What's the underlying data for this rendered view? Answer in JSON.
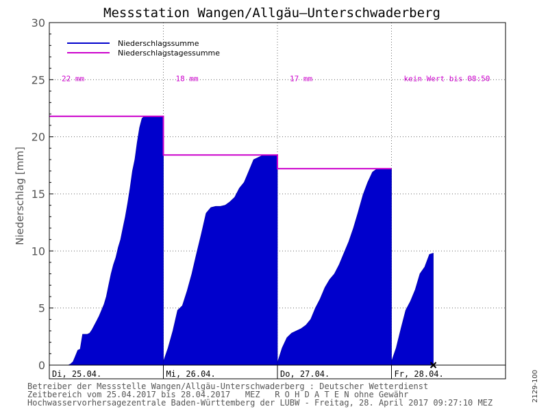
{
  "chart_data": {
    "type": "area",
    "title": "Messstation Wangen/Allgäu–Unterschwaderberg",
    "ylabel": "Niederschlag [mm]",
    "xlabel": "",
    "ylim": [
      0,
      30
    ],
    "y_ticks": [
      0,
      5,
      10,
      15,
      20,
      25,
      30
    ],
    "grid": true,
    "legend_placement": "top-left",
    "legend": [
      {
        "label": "Niederschlagssumme",
        "color": "#0000cc"
      },
      {
        "label": "Niederschlagstagessumme",
        "color": "#cc00cc"
      }
    ],
    "days": [
      {
        "label": "Di, 25.04.",
        "daily_label": "22 mm",
        "daily_total": 21.8
      },
      {
        "label": "Mi, 26.04.",
        "daily_label": "18 mm",
        "daily_total": 18.4
      },
      {
        "label": "Do, 27.04.",
        "daily_label": "17 mm",
        "daily_total": 17.2
      },
      {
        "label": "Fr, 28.04.",
        "daily_label": "kein Wert bis 08:50",
        "daily_total": null
      }
    ],
    "series": [
      {
        "name": "Niederschlagssumme",
        "x_hours": [
          0,
          1,
          2,
          3,
          4,
          4.5,
          5,
          5.5,
          6,
          6.5,
          7,
          7.5,
          8,
          8.5,
          9,
          9.5,
          10,
          10.5,
          11,
          11.5,
          12,
          12.5,
          13,
          13.5,
          14,
          14.5,
          15,
          15.5,
          16,
          16.5,
          17,
          17.5,
          18,
          18.5,
          19,
          19.5,
          20,
          20.5,
          21,
          21.5,
          22,
          22.5,
          23,
          23.5,
          24,
          24,
          25,
          26,
          27,
          28,
          29,
          30,
          31,
          32,
          33,
          34,
          35,
          36,
          37,
          38,
          39,
          40,
          41,
          42,
          43,
          44,
          45,
          46,
          47,
          48,
          48,
          49,
          50,
          51,
          52,
          53,
          54,
          55,
          56,
          57,
          58,
          59,
          60,
          61,
          62,
          63,
          64,
          65,
          66,
          67,
          68,
          69,
          70,
          71,
          72,
          72,
          73,
          74,
          75,
          76,
          77,
          78,
          79,
          80,
          80.8
        ],
        "values": [
          0,
          0,
          0,
          0,
          0,
          0.1,
          0.3,
          0.8,
          1.3,
          1.4,
          2.7,
          2.7,
          2.7,
          2.8,
          3.1,
          3.5,
          3.9,
          4.3,
          4.8,
          5.3,
          6.0,
          7.0,
          8.0,
          8.8,
          9.4,
          10.3,
          11.0,
          12.0,
          13.0,
          14.2,
          15.5,
          17.0,
          18.0,
          19.5,
          20.8,
          21.6,
          21.8,
          21.8,
          21.8,
          21.8,
          21.8,
          21.8,
          21.8,
          21.8,
          21.8,
          0.3,
          1.5,
          3.0,
          4.8,
          5.2,
          6.5,
          8.0,
          9.8,
          11.5,
          13.3,
          13.8,
          13.9,
          13.9,
          14.0,
          14.3,
          14.7,
          15.5,
          16.0,
          17.0,
          18.0,
          18.2,
          18.4,
          18.4,
          18.4,
          18.4,
          0.2,
          1.5,
          2.4,
          2.8,
          3.0,
          3.2,
          3.5,
          4.0,
          5.0,
          5.8,
          6.8,
          7.5,
          8.0,
          8.8,
          9.8,
          10.8,
          12.0,
          13.4,
          14.9,
          16.0,
          16.9,
          17.2,
          17.2,
          17.2,
          17.2,
          0.3,
          1.5,
          3.2,
          4.8,
          5.6,
          6.6,
          8.0,
          8.6,
          9.7,
          9.8
        ]
      }
    ]
  },
  "footer": {
    "line1": "Betreiber der Messstelle Wangen/Allgäu-Unterschwaderberg : Deutscher Wetterdienst",
    "line2": "Zeitbereich vom 25.04.2017 bis 28.04.2017   MEZ   R O H D A T E N ohne Gewähr",
    "line3": "Hochwasservorhersagezentrale Baden-Württemberg der LUBW - Freitag, 28. April 2017 09:27:10 MEZ"
  },
  "side_code": "2129-100"
}
